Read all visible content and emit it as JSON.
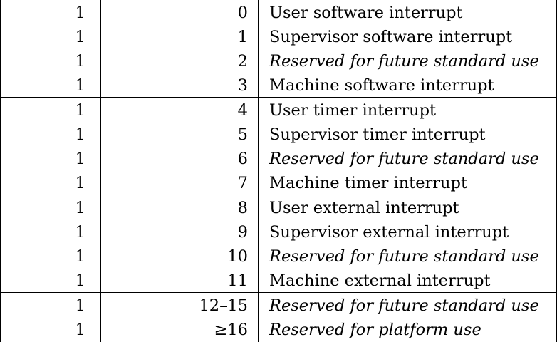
{
  "table": {
    "groups": [
      {
        "rows": [
          {
            "interrupt": "1",
            "code": "0",
            "description": "User software interrupt",
            "italic": false
          },
          {
            "interrupt": "1",
            "code": "1",
            "description": "Supervisor software interrupt",
            "italic": false
          },
          {
            "interrupt": "1",
            "code": "2",
            "description": "Reserved for future standard use",
            "italic": true
          },
          {
            "interrupt": "1",
            "code": "3",
            "description": "Machine software interrupt",
            "italic": false
          }
        ]
      },
      {
        "rows": [
          {
            "interrupt": "1",
            "code": "4",
            "description": "User timer interrupt",
            "italic": false
          },
          {
            "interrupt": "1",
            "code": "5",
            "description": "Supervisor timer interrupt",
            "italic": false
          },
          {
            "interrupt": "1",
            "code": "6",
            "description": "Reserved for future standard use",
            "italic": true
          },
          {
            "interrupt": "1",
            "code": "7",
            "description": "Machine timer interrupt",
            "italic": false
          }
        ]
      },
      {
        "rows": [
          {
            "interrupt": "1",
            "code": "8",
            "description": "User external interrupt",
            "italic": false
          },
          {
            "interrupt": "1",
            "code": "9",
            "description": "Supervisor external interrupt",
            "italic": false
          },
          {
            "interrupt": "1",
            "code": "10",
            "description": "Reserved for future standard use",
            "italic": true
          },
          {
            "interrupt": "1",
            "code": "11",
            "description": "Machine external interrupt",
            "italic": false
          }
        ]
      },
      {
        "rows": [
          {
            "interrupt": "1",
            "code": "12–15",
            "description": "Reserved for future standard use",
            "italic": true
          },
          {
            "interrupt": "1",
            "code": "≥16",
            "description": "Reserved for platform use",
            "italic": true
          }
        ]
      }
    ]
  }
}
